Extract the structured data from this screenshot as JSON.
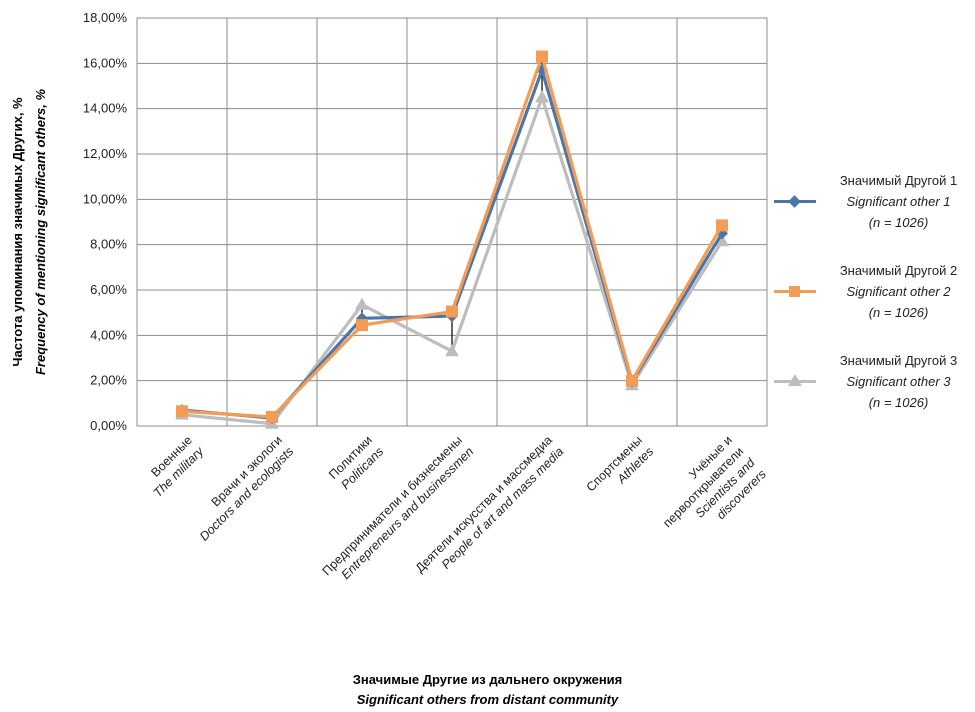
{
  "chart_data": {
    "type": "line",
    "ylabel": [
      "Частота упоминания значимых Других, %",
      "Frequency of mentioning significant others, %"
    ],
    "xlabel": [
      "Значимые Другие из дальнего окружения",
      "Significant others from distant community"
    ],
    "ylim": [
      0,
      18
    ],
    "yticks": [
      "0,00%",
      "2,00%",
      "4,00%",
      "6,00%",
      "8,00%",
      "10,00%",
      "12,00%",
      "14,00%",
      "16,00%",
      "18,00%"
    ],
    "grid": true,
    "legend_position": "right",
    "categories": [
      [
        "Военные",
        "The military"
      ],
      [
        "Врачи и экологи",
        "Doctors and ecologists"
      ],
      [
        "Политики",
        "Politicans"
      ],
      [
        "Предприниматели и бизнесмены",
        "Entrepreneurs and businessmen"
      ],
      [
        "Деятели искусства и массмедиа",
        "People of art and mass media"
      ],
      [
        "Спортсмены",
        "Athletes"
      ],
      [
        "Учёные и",
        "первооткрыватели",
        "Scientists and",
        "discoverers"
      ]
    ],
    "series": [
      {
        "name": "Значимый Другой 1",
        "name_en": "Significant other 1",
        "n": "(n = 1026)",
        "color": "#4a76a8",
        "marker": "diamond",
        "values": [
          0.7,
          0.35,
          4.75,
          4.85,
          15.7,
          1.95,
          8.5
        ]
      },
      {
        "name": "Значимый Другой 2",
        "name_en": "Significant other 2",
        "n": "(n = 1026)",
        "color": "#f39c56",
        "marker": "square",
        "values": [
          0.65,
          0.4,
          4.45,
          5.05,
          16.3,
          2.0,
          8.85
        ]
      },
      {
        "name": "Значимый Другой 3",
        "name_en": "Significant other 3",
        "n": "(n = 1026)",
        "color": "#bdbdbd",
        "marker": "triangle",
        "values": [
          0.5,
          0.1,
          5.35,
          3.3,
          14.5,
          1.8,
          8.15
        ]
      }
    ],
    "error_bars": [
      [
        0.6,
        0.8
      ],
      [
        0.2,
        0.5
      ],
      [
        4.4,
        5.4
      ],
      [
        3.4,
        5.2
      ],
      [
        14.3,
        16.3
      ],
      [
        1.8,
        2.15
      ],
      [
        8.1,
        8.9
      ]
    ]
  }
}
